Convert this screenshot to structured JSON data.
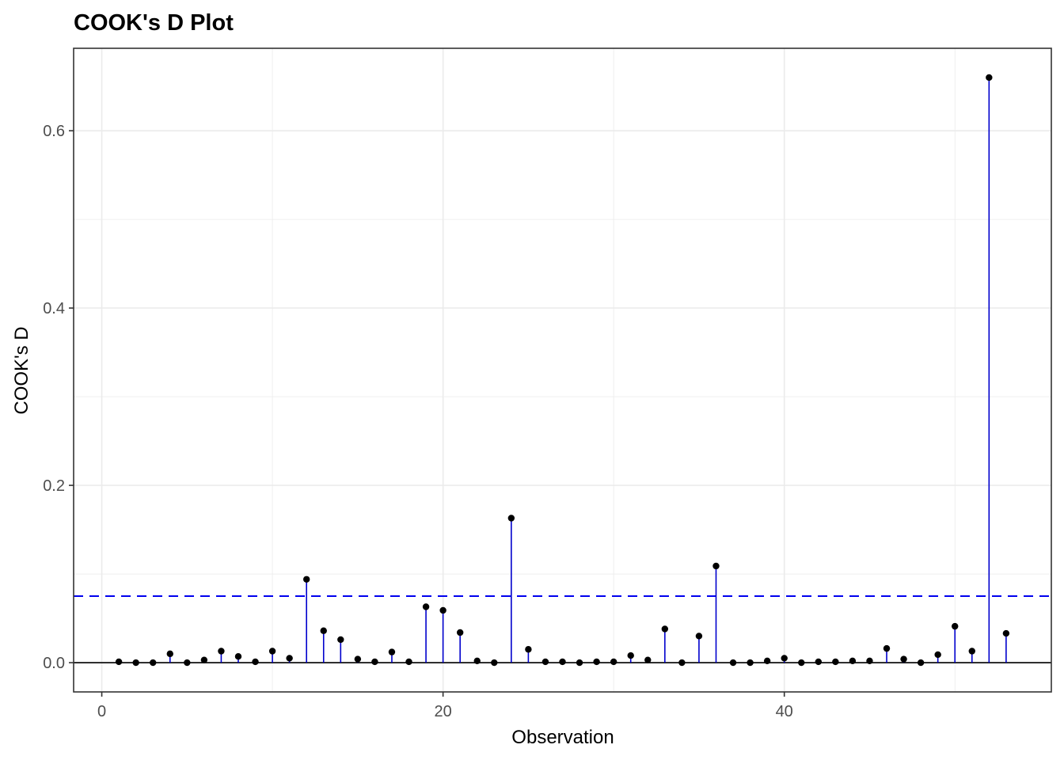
{
  "chart_data": {
    "type": "scatter",
    "title": "COOK's D Plot",
    "xlabel": "Observation",
    "ylabel": "COOK's D",
    "xlim": [
      -1.65,
      55.65
    ],
    "ylim": [
      -0.033,
      0.693
    ],
    "x_ticks": [
      0,
      20,
      40
    ],
    "y_ticks": [
      0.0,
      0.2,
      0.4,
      0.6
    ],
    "x_tick_labels": [
      "0",
      "20",
      "40"
    ],
    "y_tick_labels": [
      "0.0",
      "0.2",
      "0.4",
      "0.6"
    ],
    "grid": true,
    "legend": "none",
    "threshold": 0.075,
    "colors": {
      "stem": "#0000cd",
      "point": "#000000",
      "threshold": "#0000ee",
      "baseline": "#000000",
      "grid": "#ebebeb",
      "panel_border": "#333333"
    },
    "x": [
      1,
      2,
      3,
      4,
      5,
      6,
      7,
      8,
      9,
      10,
      11,
      12,
      13,
      14,
      15,
      16,
      17,
      18,
      19,
      20,
      21,
      22,
      23,
      24,
      25,
      26,
      27,
      28,
      29,
      30,
      31,
      32,
      33,
      34,
      35,
      36,
      37,
      38,
      39,
      40,
      41,
      42,
      43,
      44,
      45,
      46,
      47,
      48,
      49,
      50,
      51,
      52,
      53
    ],
    "values": [
      0.001,
      0.0,
      0.0,
      0.01,
      0.0,
      0.003,
      0.013,
      0.007,
      0.001,
      0.013,
      0.005,
      0.094,
      0.036,
      0.026,
      0.004,
      0.001,
      0.012,
      0.001,
      0.063,
      0.059,
      0.034,
      0.002,
      0.0,
      0.163,
      0.015,
      0.001,
      0.001,
      0.0,
      0.001,
      0.001,
      0.008,
      0.003,
      0.038,
      0.0,
      0.03,
      0.109,
      0.0,
      0.0,
      0.002,
      0.005,
      0.0,
      0.001,
      0.001,
      0.002,
      0.002,
      0.016,
      0.004,
      0.0,
      0.009,
      0.041,
      0.013,
      0.66,
      0.033
    ]
  }
}
